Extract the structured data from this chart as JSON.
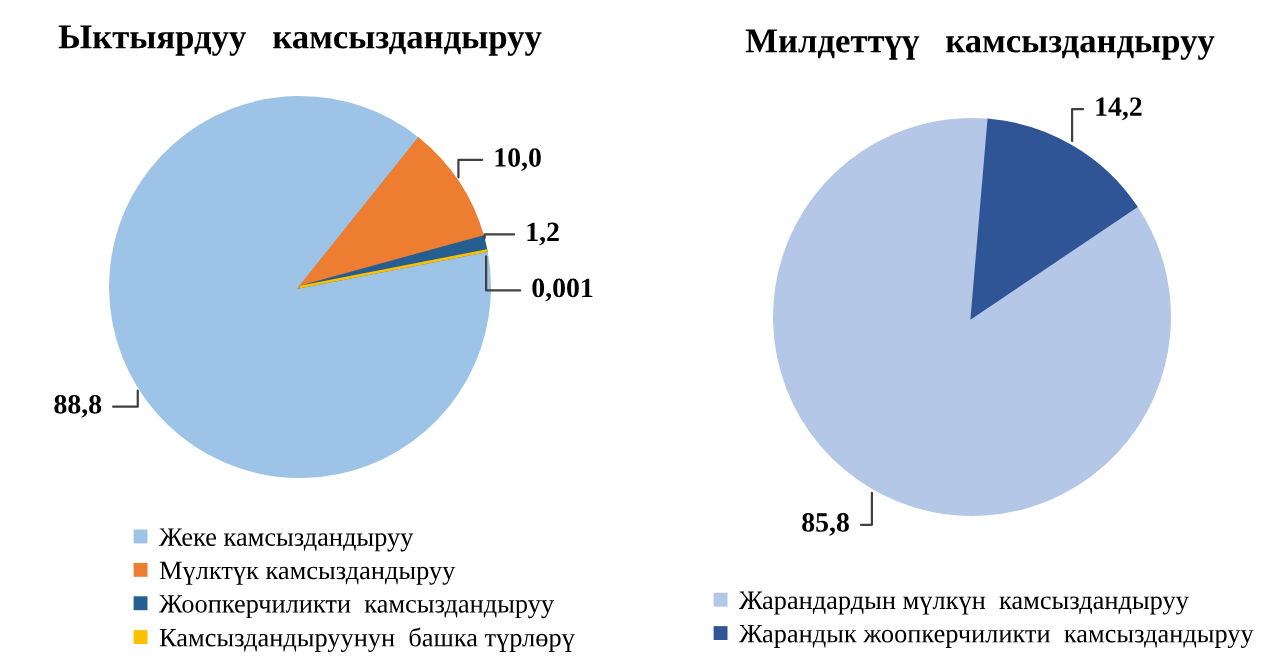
{
  "chart_data": [
    {
      "type": "pie",
      "title": "Ыктыярдуу   камсыздандыруу",
      "categories": [
        "Жеке камсыздандыруу",
        "Мүлктүк камсыздандыруу",
        "Жоопкерчиликти  камсыздандыруу",
        "Камсыздандыруунун  башка түрлөрү"
      ],
      "values": [
        88.8,
        10.0,
        1.2,
        0.001
      ],
      "colors": [
        "#9dc3e6",
        "#ed7d31",
        "#255e91",
        "#ffc000"
      ],
      "value_labels": [
        "88,8",
        "10,0",
        "1,2",
        "0,001"
      ],
      "legend": "bottom"
    },
    {
      "type": "pie",
      "title": "Милдеттүү   камсыздандыруу",
      "categories": [
        "Жарандардын мүлкүн  камсыздандыруу",
        "Жарандык жоопкерчиликти  камсыздандыруу"
      ],
      "values": [
        85.8,
        14.2
      ],
      "colors": [
        "#b4c7e7",
        "#2f5597"
      ],
      "value_labels": [
        "85,8",
        "14,2"
      ],
      "legend": "bottom"
    }
  ]
}
